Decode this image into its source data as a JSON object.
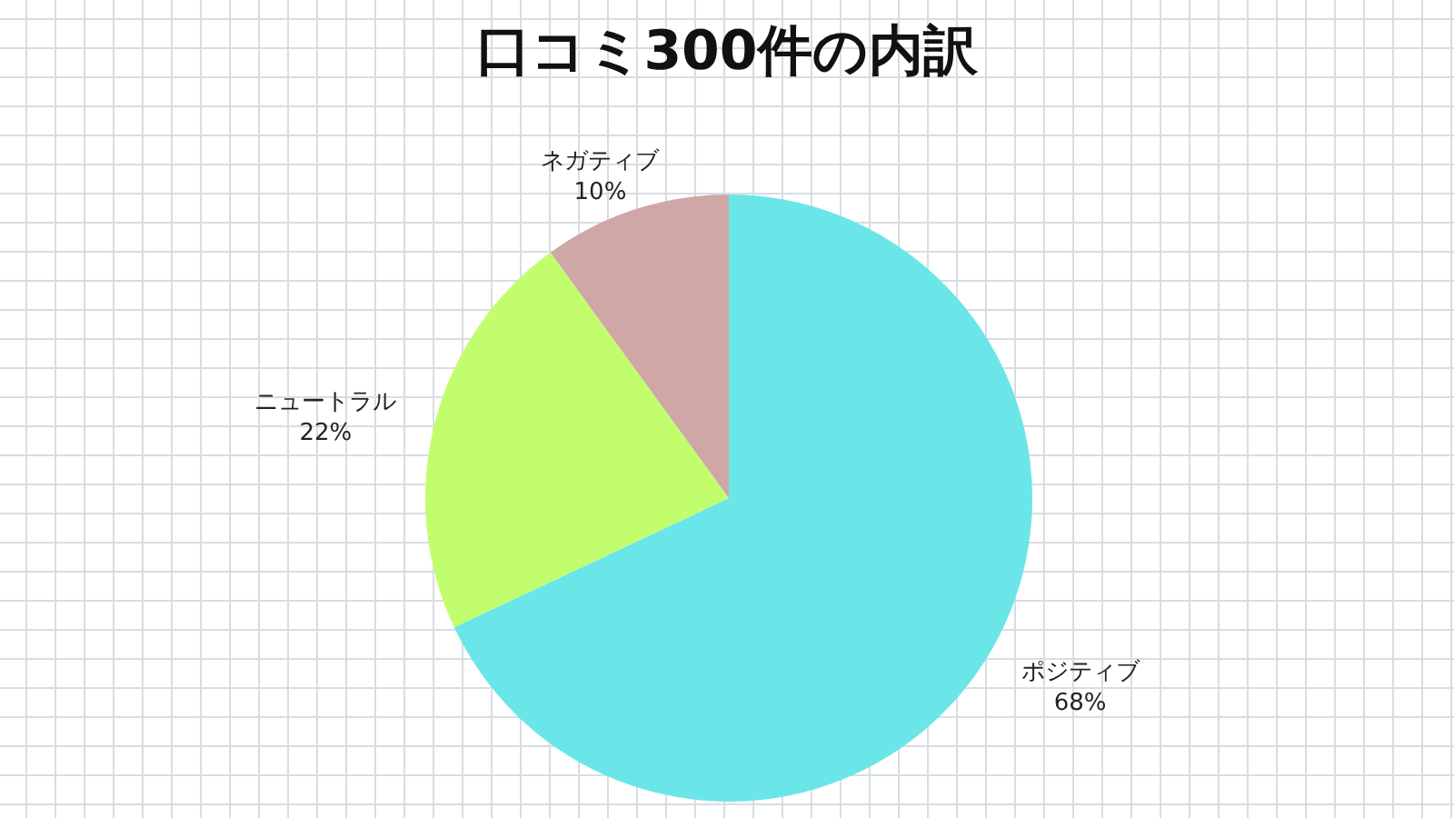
{
  "chart_data": {
    "type": "pie",
    "title": "口コミ300件の内訳",
    "categories": [
      "ポジティブ",
      "ニュートラル",
      "ネガティブ"
    ],
    "values": [
      68,
      22,
      10
    ],
    "colors": [
      "#6ae6e8",
      "#c2fd6e",
      "#cfa7a7"
    ],
    "value_labels": [
      "68%",
      "22%",
      "10%"
    ]
  }
}
